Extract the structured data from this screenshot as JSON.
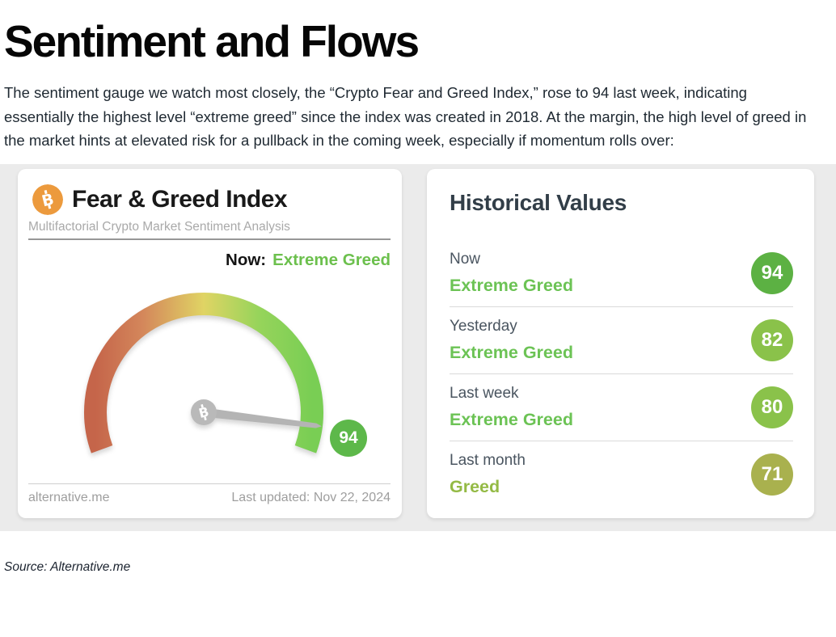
{
  "page": {
    "title": "Sentiment and Flows",
    "intro": "The sentiment gauge we watch most closely, the “Crypto Fear and Greed Index,” rose to 94 last week, indicating essentially the highest level “extreme greed” since the index was created in 2018. At the margin, the high level of greed in the market hints at elevated risk for a pullback in the coming week, especially if momentum rolls over:",
    "source": "Source: Alternative.me"
  },
  "colors": {
    "bitcoin_orange": "#ec9a3d",
    "extreme_greed_green": "#6cc04d",
    "section_background": "#ebebeb"
  },
  "gauge_card": {
    "title": "Fear & Greed Index",
    "subtitle": "Multifactorial Crypto Market Sentiment Analysis",
    "now_label": "Now:",
    "now_value": "Extreme Greed",
    "value": 94,
    "badge_color": "#5db84a",
    "footer_left": "alternative.me",
    "footer_right": "Last updated: Nov 22, 2024"
  },
  "historical_card": {
    "title": "Historical Values",
    "rows": [
      {
        "label": "Now",
        "classification": "Extreme Greed",
        "classification_color": "#6cc355",
        "value": 94,
        "badge_color": "#5cb143"
      },
      {
        "label": "Yesterday",
        "classification": "Extreme Greed",
        "classification_color": "#6cc355",
        "value": 82,
        "badge_color": "#8ac24a"
      },
      {
        "label": "Last week",
        "classification": "Extreme Greed",
        "classification_color": "#6cc355",
        "value": 80,
        "badge_color": "#8ac24a"
      },
      {
        "label": "Last month",
        "classification": "Greed",
        "classification_color": "#94ba45",
        "value": 71,
        "badge_color": "#a9b14e"
      }
    ]
  },
  "chart_data": {
    "type": "gauge",
    "title": "Fear & Greed Index",
    "value": 94,
    "value_label": "Extreme Greed",
    "range": [
      0,
      100
    ],
    "historical": [
      {
        "label": "Now",
        "value": 94,
        "classification": "Extreme Greed"
      },
      {
        "label": "Yesterday",
        "value": 82,
        "classification": "Extreme Greed"
      },
      {
        "label": "Last week",
        "value": 80,
        "classification": "Extreme Greed"
      },
      {
        "label": "Last month",
        "value": 71,
        "classification": "Greed"
      }
    ]
  }
}
